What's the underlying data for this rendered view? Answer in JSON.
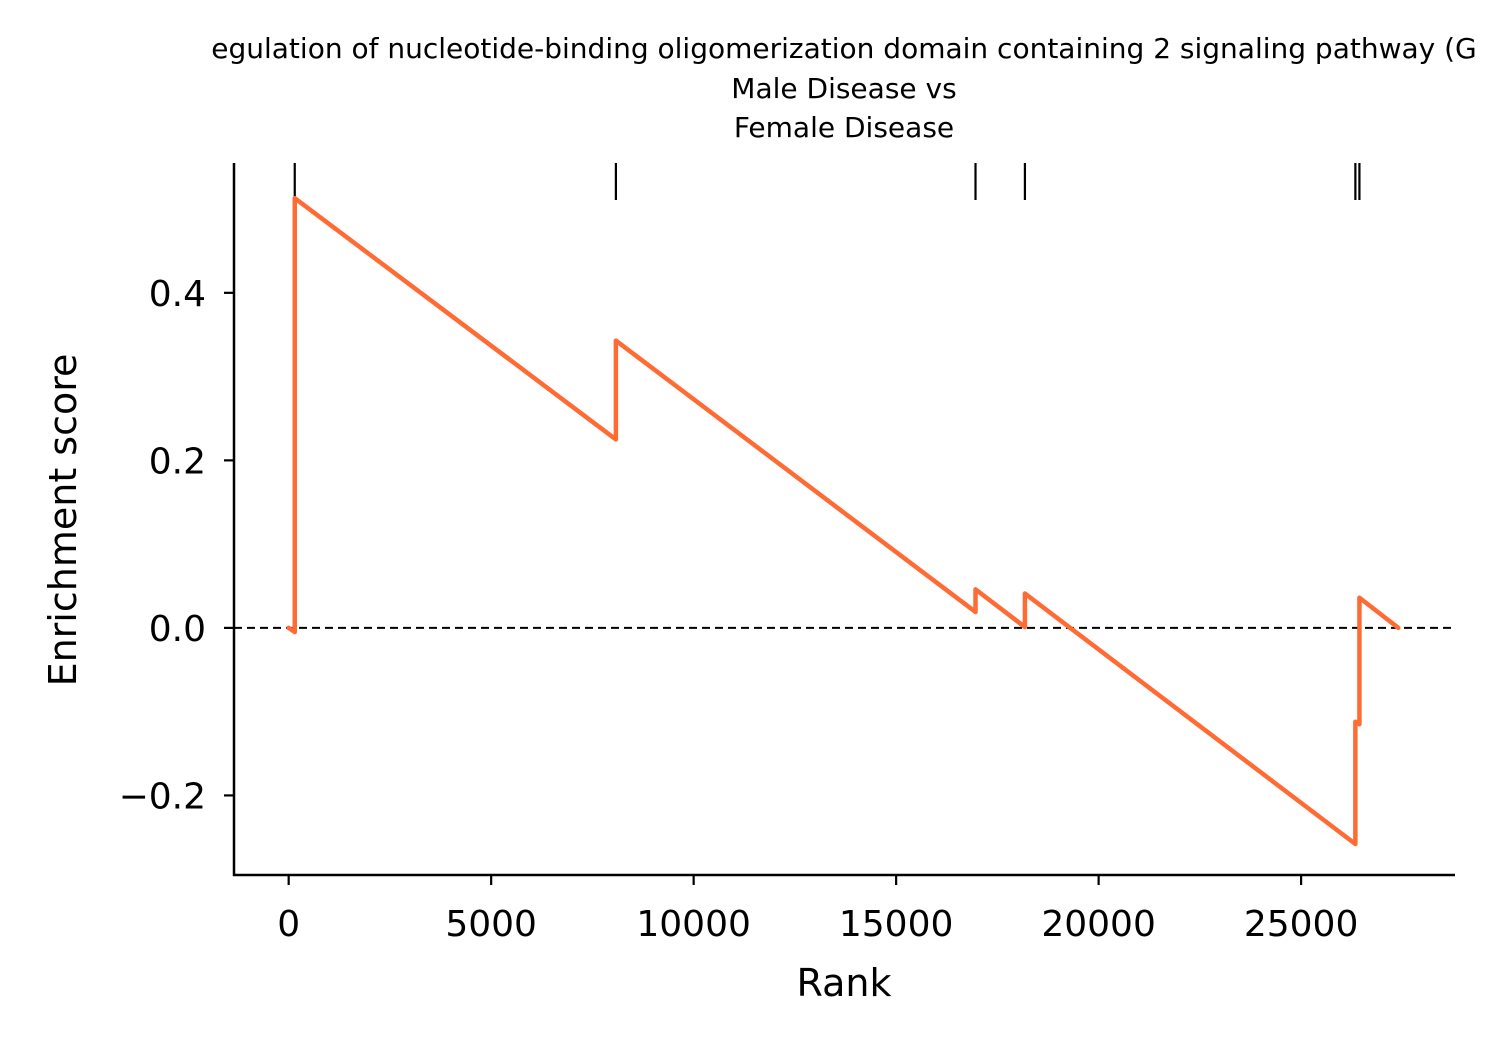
{
  "chart_data": {
    "type": "line",
    "title_lines": [
      "egulation of nucleotide-binding oligomerization domain containing 2 signaling pathway (G",
      "Male Disease vs",
      "Female Disease"
    ],
    "xlabel": "Rank",
    "ylabel": "Enrichment score",
    "xlim": [
      -1350,
      28800
    ],
    "ylim": [
      -0.295,
      0.555
    ],
    "x_ticks": [
      0,
      5000,
      10000,
      15000,
      20000,
      25000
    ],
    "x_tick_labels": [
      "0",
      "5000",
      "10000",
      "15000",
      "20000",
      "25000"
    ],
    "y_ticks": [
      -0.2,
      0.0,
      0.2,
      0.4
    ],
    "y_tick_labels": [
      "−0.2",
      "0.0",
      "0.2",
      "0.4"
    ],
    "reference_line_y": 0.0,
    "line_color": "#ff6b35",
    "hit_ranks": [
      150,
      8080,
      16960,
      18180,
      26340,
      26440
    ],
    "series": [
      {
        "x": [
          0,
          150,
          150,
          8080,
          8080,
          16960,
          16960,
          18180,
          18180,
          26340,
          26340,
          26440,
          26440,
          27400
        ],
        "y": [
          0.0,
          -0.005,
          0.513,
          0.225,
          0.343,
          0.019,
          0.046,
          0.001,
          0.041,
          -0.258,
          -0.112,
          -0.115,
          0.036,
          0.0
        ]
      }
    ]
  }
}
